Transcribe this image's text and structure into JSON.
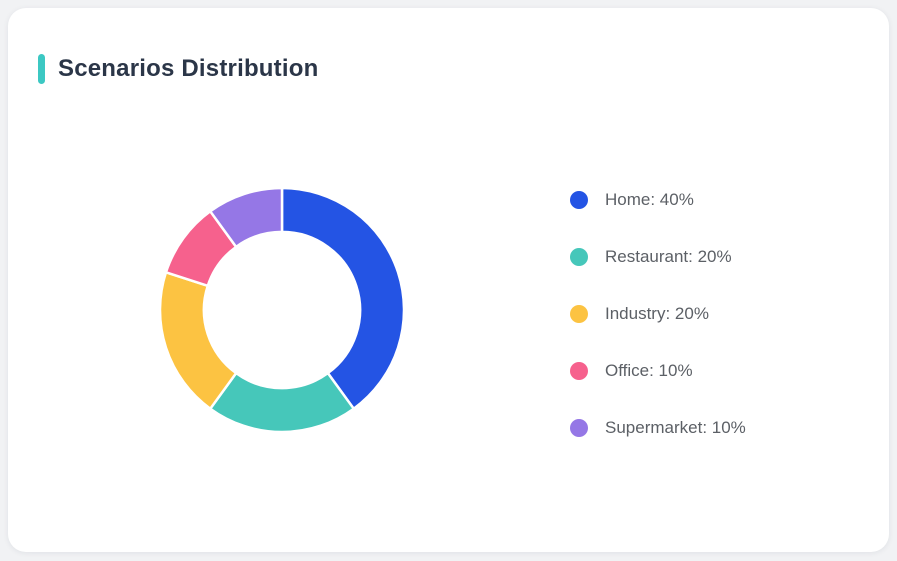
{
  "window": {
    "background": "#f1f2f4",
    "card_background": "#ffffff"
  },
  "header": {
    "title": "Scenarios Distribution",
    "accent_color": "#3cc8c3",
    "title_color": "#2b3648"
  },
  "chart_data": {
    "type": "pie",
    "subtype": "donut",
    "title": "Scenarios Distribution",
    "categories": [
      "Home",
      "Restaurant",
      "Industry",
      "Office",
      "Supermarket"
    ],
    "values": [
      40,
      20,
      20,
      10,
      10
    ],
    "unit": "%",
    "colors": [
      "#2454e4",
      "#46c7ba",
      "#fcc342",
      "#f6618d",
      "#9577e6"
    ],
    "start_angle_deg": 0,
    "direction": "clockwise",
    "inner_radius_ratio": 0.64,
    "segment_border_color": "#ffffff",
    "segment_border_width": 2.5,
    "legend_position": "right",
    "legend_text_color": "#5c6066",
    "legend_labels": [
      "Home: 40%",
      "Restaurant: 20%",
      "Industry: 20%",
      "Office: 10%",
      "Supermarket: 10%"
    ]
  }
}
